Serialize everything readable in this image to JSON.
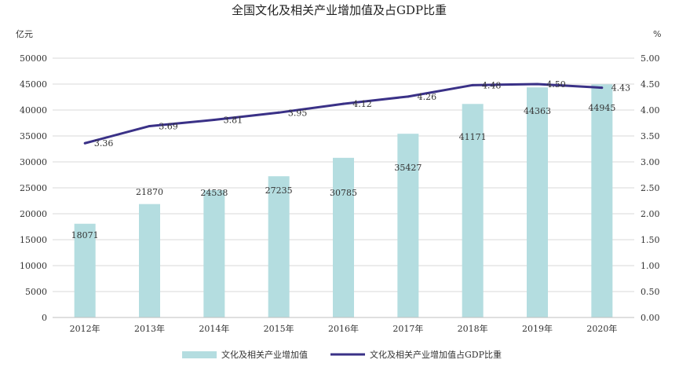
{
  "chart_data": {
    "type": "bar+line",
    "title": "全国文化及相关产业增加值及占GDP比重",
    "categories": [
      "2012年",
      "2013年",
      "2014年",
      "2015年",
      "2016年",
      "2017年",
      "2018年",
      "2019年",
      "2020年"
    ],
    "series": [
      {
        "name": "文化及相关产业增加值",
        "type": "bar",
        "axis": "left",
        "values": [
          18071,
          21870,
          24538,
          27235,
          30785,
          35427,
          41171,
          44363,
          44945
        ],
        "labels": [
          "18071",
          "21870",
          "24538",
          "27235",
          "30785",
          "35427",
          "41171",
          "44363",
          "44945"
        ]
      },
      {
        "name": "文化及相关产业增加值占GDP比重",
        "type": "line",
        "axis": "right",
        "values": [
          3.36,
          3.69,
          3.81,
          3.95,
          4.12,
          4.26,
          4.48,
          4.5,
          4.43
        ],
        "labels": [
          "3.36",
          "3.69",
          "3.81",
          "3.95",
          "4.12",
          "4.26",
          "4.48",
          "4.50",
          "4.43"
        ]
      }
    ],
    "y_left": {
      "unit": "亿元",
      "range": [
        0,
        50000
      ],
      "ticks": [
        "0",
        "5000",
        "10000",
        "15000",
        "20000",
        "25000",
        "30000",
        "35000",
        "40000",
        "45000",
        "50000"
      ]
    },
    "y_right": {
      "unit": "%",
      "range": [
        0,
        5
      ],
      "ticks": [
        "0.00",
        "0.50",
        "1.00",
        "1.50",
        "2.00",
        "2.50",
        "3.00",
        "3.50",
        "4.00",
        "4.50",
        "5.00"
      ]
    },
    "grid": true,
    "legend_position": "bottom",
    "colors": {
      "bar": "#b4dde0",
      "line": "#3a3187",
      "grid": "#d9d9d9",
      "axis": "#bfbfbf"
    }
  }
}
